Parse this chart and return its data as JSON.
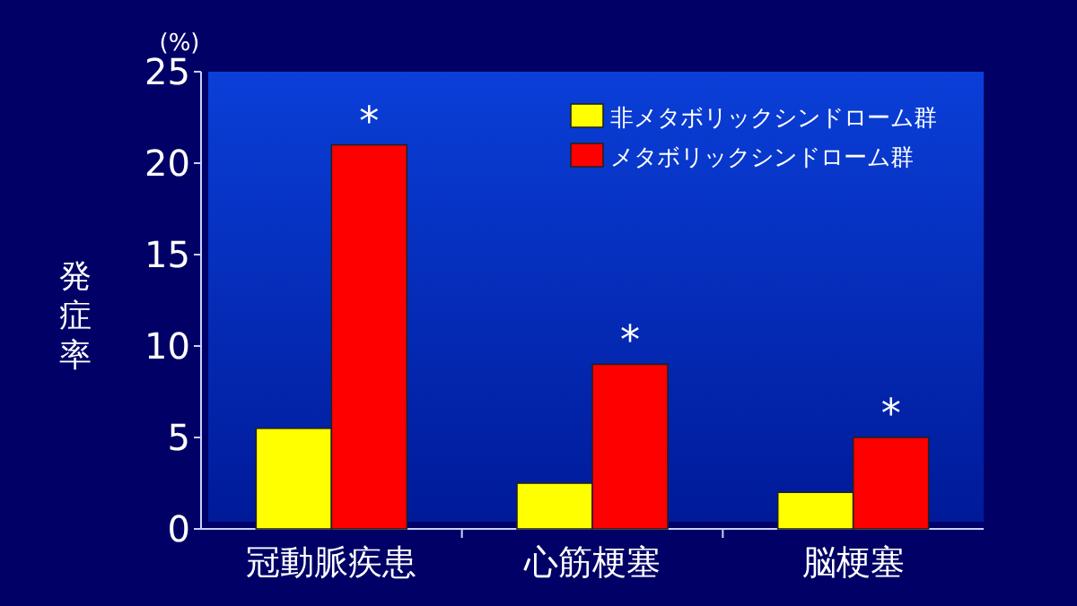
{
  "chart_data": {
    "type": "bar",
    "ylabel": "発症率",
    "categories": [
      "冠動脈疾患",
      "心筋梗塞",
      "脳梗塞"
    ],
    "series": [
      {
        "name": "非メタボリックシンドローム群",
        "color": "#ffff00",
        "values": [
          5.5,
          2.5,
          2
        ]
      },
      {
        "name": "メタボリックシンドローム群",
        "color": "#ff0000",
        "values": [
          21,
          9,
          5
        ]
      }
    ],
    "ylim": [
      0,
      25
    ],
    "yticks": [
      0,
      5,
      10,
      15,
      20,
      25
    ],
    "grid": false,
    "legend": "top right",
    "annotations": [
      "(%)",
      {
        "text": "*",
        "x": "冠動脈疾患",
        "y": 21
      },
      {
        "text": "*",
        "x": "心筋梗塞",
        "y": 9
      },
      {
        "text": "*",
        "x": "脳梗塞",
        "y": 5
      }
    ]
  }
}
